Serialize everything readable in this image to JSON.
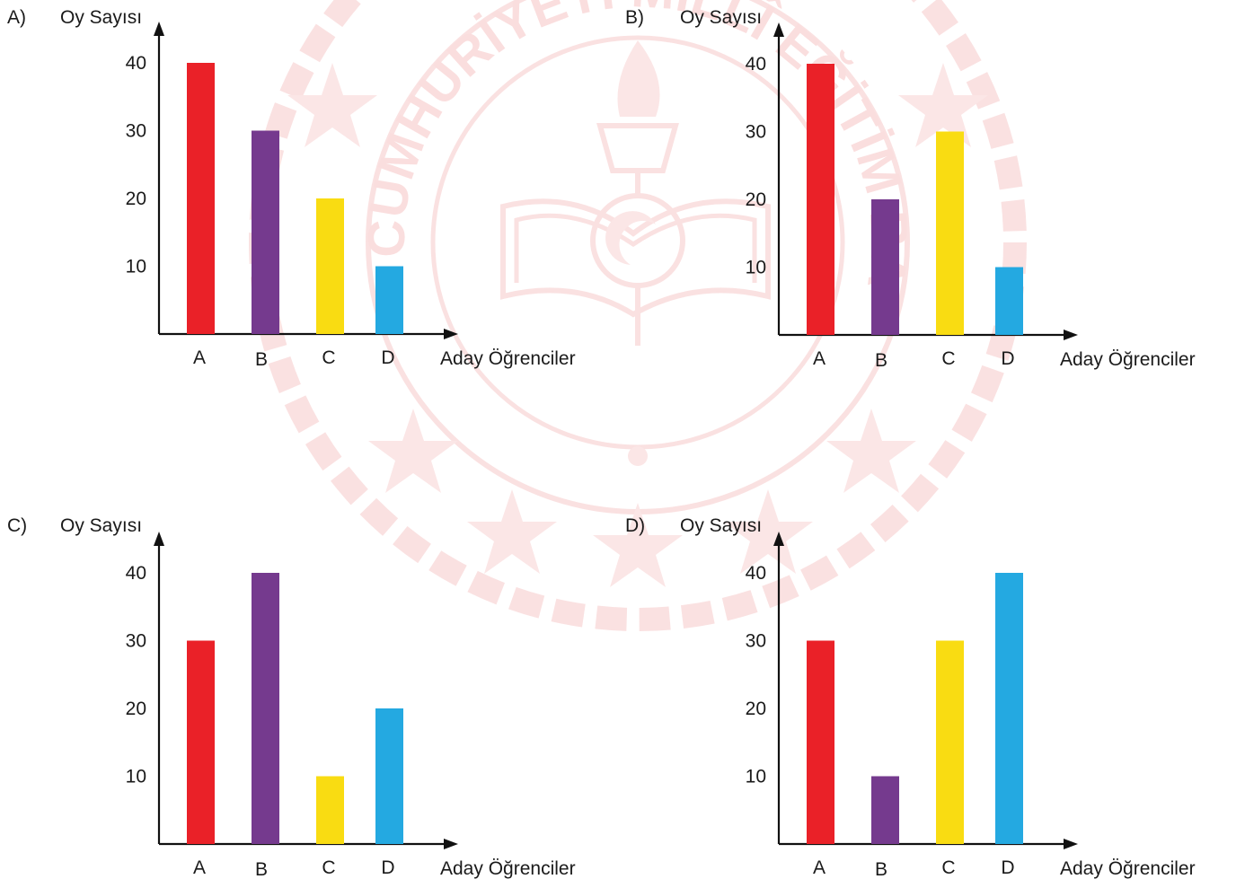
{
  "watermark": {
    "ring_text": "TÜRKİYE CUMHURİYETİ MİLLÎ EĞİTİM BAKANLIĞI",
    "color": "#f4b9b9"
  },
  "colors": {
    "A": "#ea2128",
    "B": "#753a8e",
    "C": "#f9dc12",
    "D": "#24a9e1"
  },
  "chart_data": [
    {
      "option": "A)",
      "type": "bar",
      "ylabel": "Oy Sayısı",
      "xlabel": "Aday Öğrenciler",
      "categories": [
        "A",
        "B",
        "C",
        "D"
      ],
      "values": [
        40,
        30,
        20,
        10
      ],
      "yticks": [
        10,
        20,
        30,
        40
      ],
      "ylim": [
        0,
        40
      ],
      "grid": false,
      "colors": [
        "#ea2128",
        "#753a8e",
        "#f9dc12",
        "#24a9e1"
      ]
    },
    {
      "option": "B)",
      "type": "bar",
      "ylabel": "Oy Sayısı",
      "xlabel": "Aday Öğrenciler",
      "categories": [
        "A",
        "B",
        "C",
        "D"
      ],
      "values": [
        40,
        20,
        30,
        10
      ],
      "yticks": [
        10,
        20,
        30,
        40
      ],
      "ylim": [
        0,
        40
      ],
      "grid": false,
      "colors": [
        "#ea2128",
        "#753a8e",
        "#f9dc12",
        "#24a9e1"
      ]
    },
    {
      "option": "C)",
      "type": "bar",
      "ylabel": "Oy Sayısı",
      "xlabel": "Aday Öğrenciler",
      "categories": [
        "A",
        "B",
        "C",
        "D"
      ],
      "values": [
        30,
        40,
        10,
        20
      ],
      "yticks": [
        10,
        20,
        30,
        40
      ],
      "ylim": [
        0,
        40
      ],
      "grid": false,
      "colors": [
        "#ea2128",
        "#753a8e",
        "#f9dc12",
        "#24a9e1"
      ]
    },
    {
      "option": "D)",
      "type": "bar",
      "ylabel": "Oy Sayısı",
      "xlabel": "Aday Öğrenciler",
      "categories": [
        "A",
        "B",
        "C",
        "D"
      ],
      "values": [
        30,
        10,
        30,
        40
      ],
      "yticks": [
        10,
        20,
        30,
        40
      ],
      "ylim": [
        0,
        40
      ],
      "grid": false,
      "colors": [
        "#ea2128",
        "#753a8e",
        "#f9dc12",
        "#24a9e1"
      ]
    }
  ]
}
